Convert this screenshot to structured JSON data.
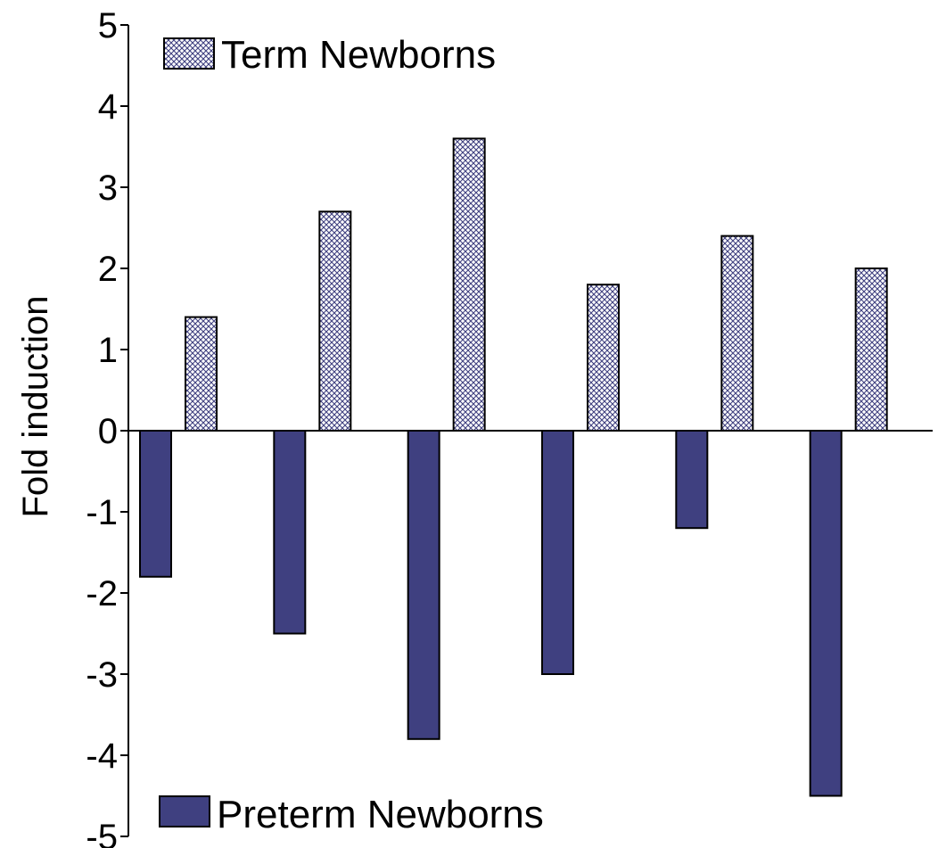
{
  "chart_data": {
    "type": "bar",
    "title": "",
    "xlabel": "",
    "ylabel": "Fold induction",
    "ylim": [
      -5,
      5
    ],
    "yticks": [
      5,
      4,
      3,
      2,
      1,
      0,
      -1,
      -2,
      -3,
      -4,
      -5
    ],
    "grid": false,
    "categories": [
      "",
      "",
      "",
      "",
      "",
      ""
    ],
    "series": [
      {
        "name": "Preterm Newborns",
        "values": [
          -1.8,
          -2.5,
          -3.8,
          -3.0,
          -1.2,
          -4.5
        ],
        "color": "#3f4080",
        "pattern": "solid"
      },
      {
        "name": "Term Newborns",
        "values": [
          1.4,
          2.7,
          3.6,
          1.8,
          2.4,
          2.0
        ],
        "color": "#3f4080",
        "pattern": "crosshatch"
      }
    ],
    "legend": [
      {
        "label": "Term Newborns",
        "placement": "top-left"
      },
      {
        "label": "Preterm Newborns",
        "placement": "bottom-left"
      }
    ]
  }
}
